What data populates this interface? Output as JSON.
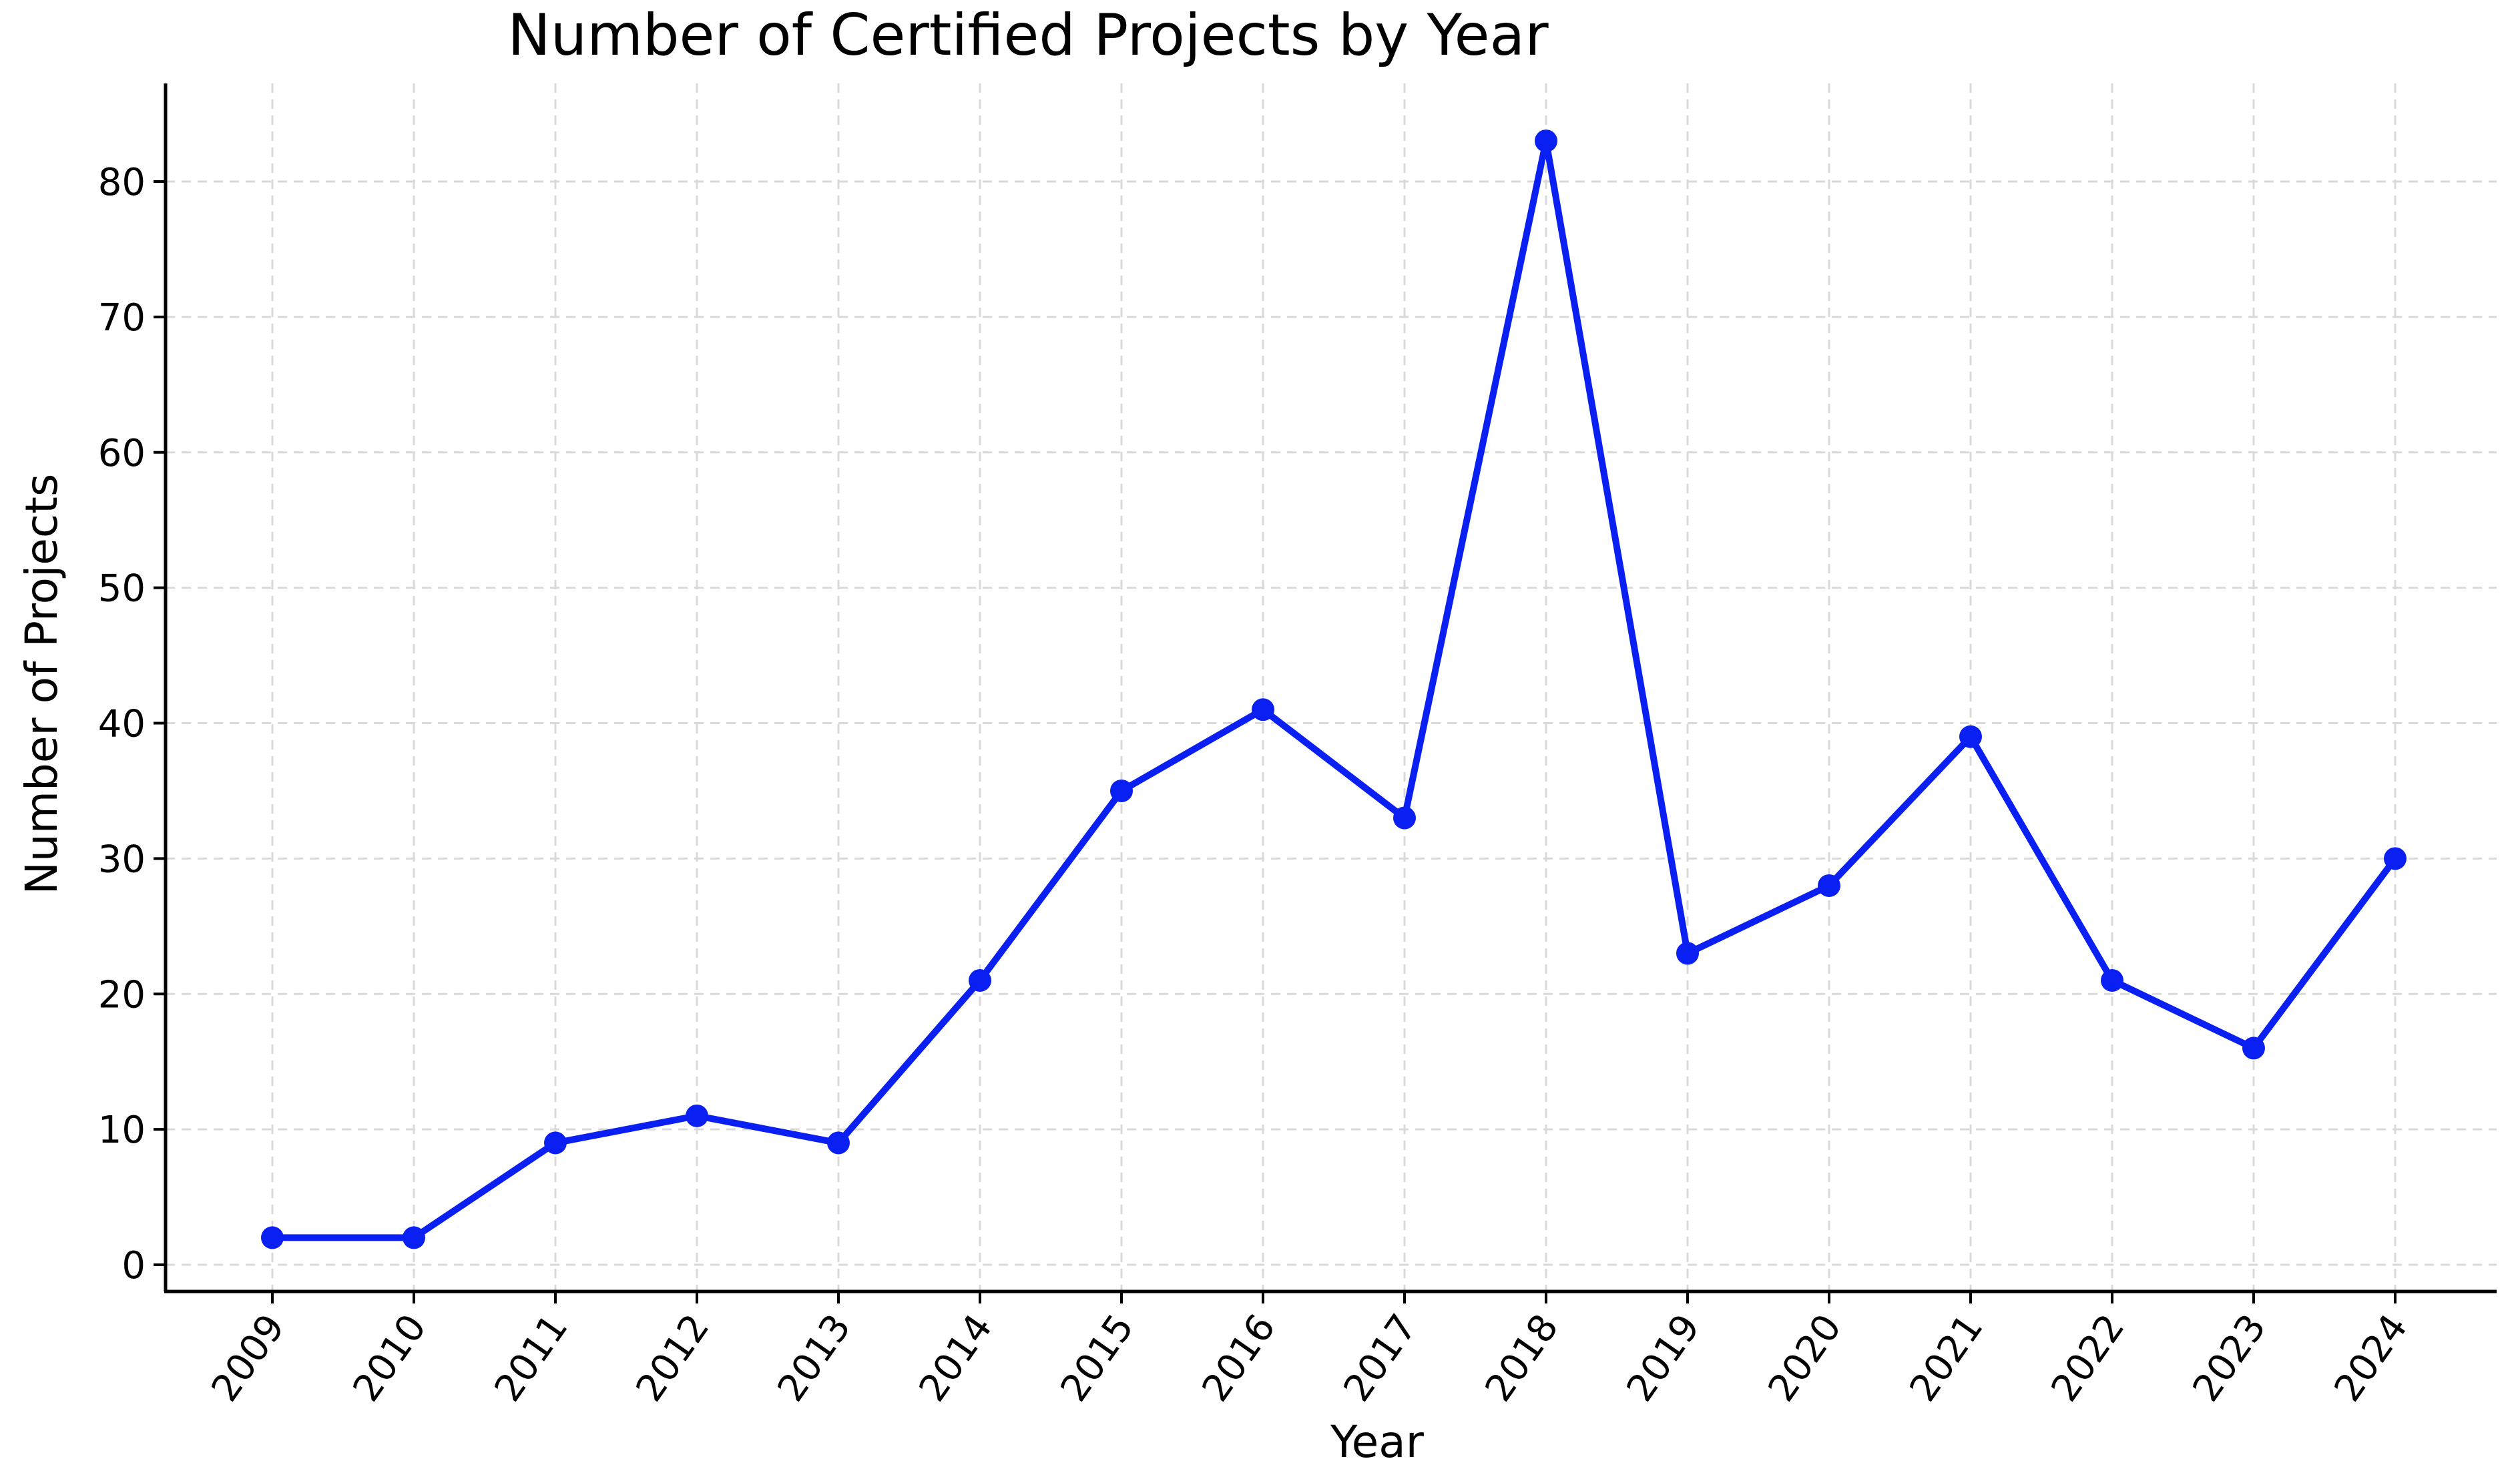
{
  "chart_data": {
    "type": "line",
    "title": "Number of Certified Projects by Year",
    "xlabel": "Year",
    "ylabel": "Number of Projects",
    "categories": [
      "2009",
      "2010",
      "2011",
      "2012",
      "2013",
      "2014",
      "2015",
      "2016",
      "2017",
      "2018",
      "2019",
      "2020",
      "2021",
      "2022",
      "2023",
      "2024"
    ],
    "series": [
      {
        "values": [
          2,
          2,
          9,
          11,
          9,
          21,
          35,
          41,
          33,
          83,
          23,
          28,
          39,
          21,
          16,
          30
        ],
        "color": "#0a1ff2"
      }
    ],
    "ylim": [
      -2,
      88
    ],
    "yticks": [
      0,
      10,
      20,
      30,
      40,
      50,
      60,
      70,
      80
    ],
    "grid": true,
    "marker": "circle"
  }
}
